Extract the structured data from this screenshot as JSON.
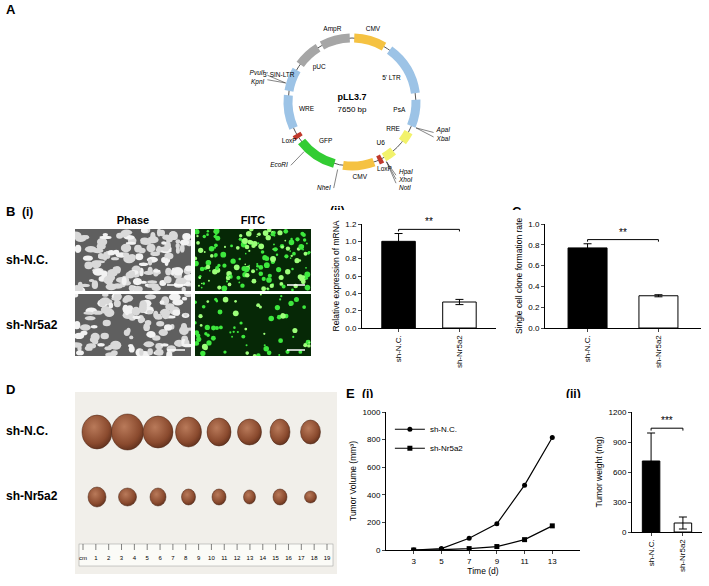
{
  "panel_labels": {
    "A": "A",
    "B": "B",
    "B_i": "(i)",
    "B_ii": "(ii)",
    "C": "C",
    "D": "D",
    "E": "E",
    "E_i": "(i)",
    "E_ii": "(ii)"
  },
  "plasmid": {
    "name": "pLL3.7",
    "size": "7650 bp",
    "features": [
      {
        "name": "CMV",
        "color": "#f5c242"
      },
      {
        "name": "5' LTR",
        "color": "#9cc3e6"
      },
      {
        "name": "PsA",
        "color": "#9cc3e6"
      },
      {
        "name": "RRE",
        "color": "#f2f26b"
      },
      {
        "name": "U6",
        "color": "#f2f26b"
      },
      {
        "name": "LoxP",
        "color": "#c0392b"
      },
      {
        "name": "CMV",
        "color": "#f5c242"
      },
      {
        "name": "GFP",
        "color": "#33cc33"
      },
      {
        "name": "LoxP",
        "color": "#c0392b"
      },
      {
        "name": "WRE",
        "color": "#9cc3e6"
      },
      {
        "name": "3' SIN-LTR",
        "color": "#9cc3e6"
      },
      {
        "name": "pUC",
        "color": "#a6a6a6"
      },
      {
        "name": "AmpR",
        "color": "#a6a6a6"
      }
    ],
    "sites": [
      "PvuII",
      "KpnI",
      "ApaI",
      "XbaI",
      "HpaI",
      "XhoI",
      "NotI",
      "NheI",
      "EcoRI"
    ]
  },
  "microscopy": {
    "columns": [
      "Phase",
      "FITC"
    ],
    "rows": [
      "sh-N.C.",
      "sh-Nr5a2"
    ]
  },
  "tumor_photo": {
    "rows": [
      "sh-N.C.",
      "sh-Nr5a2"
    ],
    "ruler": [
      "cm",
      "1",
      "2",
      "3",
      "4",
      "5",
      "6",
      "7",
      "8",
      "9",
      "10",
      "11",
      "12",
      "13",
      "14",
      "15",
      "16",
      "17",
      "18",
      "19"
    ]
  },
  "chart_data": [
    {
      "type": "bar",
      "y_label": "Relative expression of mRNA",
      "categories": [
        "sh-N.C.",
        "sh-Nr5a2"
      ],
      "values": [
        1.0,
        0.3
      ],
      "error": [
        0.09,
        0.03
      ],
      "colors": [
        "#000000",
        "#ffffff"
      ],
      "ylim": [
        0,
        1.2
      ],
      "yticks": [
        {
          "value": 0,
          "label": "0.0"
        },
        {
          "value": 0.2,
          "label": "0.2"
        },
        {
          "value": 0.4,
          "label": "0.4"
        },
        {
          "value": 0.6,
          "label": "0.6"
        },
        {
          "value": 0.8,
          "label": "0.8"
        },
        {
          "value": 1.0,
          "label": "1.0"
        },
        {
          "value": 1.2,
          "label": "1.2"
        }
      ],
      "annotations": [
        "**"
      ],
      "grid": false
    },
    {
      "type": "bar",
      "y_label": "Single cell clone formation rate",
      "categories": [
        "sh-N.C.",
        "sh-Nr5a2"
      ],
      "values": [
        0.77,
        0.31
      ],
      "error": [
        0.04,
        0.01
      ],
      "colors": [
        "#000000",
        "#ffffff"
      ],
      "ylim": [
        0,
        1.0
      ],
      "yticks": [
        {
          "value": 0,
          "label": "0.0"
        },
        {
          "value": 0.2,
          "label": "0.2"
        },
        {
          "value": 0.4,
          "label": "0.4"
        },
        {
          "value": 0.6,
          "label": "0.6"
        },
        {
          "value": 0.8,
          "label": "0.8"
        },
        {
          "value": 1.0,
          "label": "1.0"
        }
      ],
      "annotations": [
        "**"
      ],
      "grid": false
    },
    {
      "type": "line",
      "x_label": "Time (d)",
      "y_label": "Tumor Volume (mm³)",
      "x": [
        3,
        5,
        7,
        9,
        11,
        13
      ],
      "series": [
        {
          "name": "sh-N.C.",
          "color": "#000000",
          "marker": "circle",
          "values": [
            0,
            10,
            85,
            190,
            470,
            815
          ]
        },
        {
          "name": "sh-Nr5a2",
          "color": "#000000",
          "marker": "square",
          "values": [
            0,
            2,
            10,
            25,
            75,
            175
          ]
        }
      ],
      "xlim": [
        1,
        15
      ],
      "xticks": [
        3,
        5,
        7,
        9,
        11,
        13
      ],
      "ylim": [
        0,
        1000
      ],
      "yticks": [
        0,
        200,
        400,
        600,
        800,
        1000
      ],
      "legend": "top left",
      "grid": false
    },
    {
      "type": "bar",
      "y_label": "Tumor weight (mg)",
      "categories": [
        "sh-N.C.",
        "sh-Nr5a2"
      ],
      "values": [
        710,
        90
      ],
      "error": [
        280,
        60
      ],
      "colors": [
        "#000000",
        "#ffffff"
      ],
      "ylim": [
        0,
        1200
      ],
      "yticks": [
        0,
        300,
        600,
        900,
        1200
      ],
      "annotations": [
        "***"
      ],
      "grid": false
    }
  ]
}
